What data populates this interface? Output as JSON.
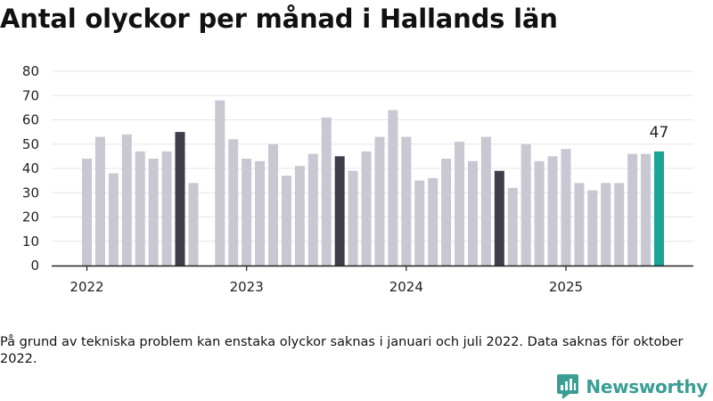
{
  "header": {
    "title": "Antal olyckor per månad i Hallands län"
  },
  "chart_data": {
    "type": "bar",
    "title": "Antal olyckor per månad i Hallands län",
    "xlabel": "",
    "ylabel": "",
    "ylim": [
      0,
      80
    ],
    "yticks": [
      0,
      10,
      20,
      30,
      40,
      50,
      60,
      70,
      80
    ],
    "x_year_labels": [
      {
        "label": "2022",
        "month_index": 0
      },
      {
        "label": "2023",
        "month_index": 12
      },
      {
        "label": "2024",
        "month_index": 24
      },
      {
        "label": "2025",
        "month_index": 36
      }
    ],
    "months": [
      "2022-01",
      "2022-02",
      "2022-03",
      "2022-04",
      "2022-05",
      "2022-06",
      "2022-07",
      "2022-08",
      "2022-09",
      "2022-10",
      "2022-11",
      "2022-12",
      "2023-01",
      "2023-02",
      "2023-03",
      "2023-04",
      "2023-05",
      "2023-06",
      "2023-07",
      "2023-08",
      "2023-09",
      "2023-10",
      "2023-11",
      "2023-12",
      "2024-01",
      "2024-02",
      "2024-03",
      "2024-04",
      "2024-05",
      "2024-06",
      "2024-07",
      "2024-08",
      "2024-09",
      "2024-10",
      "2024-11",
      "2024-12",
      "2025-01",
      "2025-02",
      "2025-03",
      "2025-04",
      "2025-05",
      "2025-06",
      "2025-07",
      "2025-08"
    ],
    "values": [
      44,
      53,
      38,
      54,
      47,
      44,
      47,
      55,
      34,
      null,
      68,
      52,
      44,
      43,
      50,
      37,
      41,
      46,
      61,
      45,
      39,
      47,
      53,
      64,
      53,
      35,
      36,
      44,
      51,
      43,
      53,
      39,
      32,
      50,
      43,
      45,
      48,
      34,
      31,
      34,
      34,
      46,
      46,
      47
    ],
    "highlight_dark_months": [
      "2022-08",
      "2023-08",
      "2024-08"
    ],
    "highlight_current_month": "2025-08",
    "data_labels": [
      {
        "month": "2025-08",
        "text": "47"
      }
    ],
    "grid": true,
    "legend": "none",
    "colors": {
      "default_bar": "#c8c7d2",
      "dark_bar": "#3e3d4a",
      "current_bar": "#1ba597",
      "grid": "#e6e6e6",
      "axis": "#222222"
    }
  },
  "note": "På grund av tekniska problem kan enstaka olyckor saknas i januari och juli 2022. Data saknas för oktober 2022.",
  "brand": {
    "name": "Newsworthy",
    "color": "#3a9e94"
  }
}
